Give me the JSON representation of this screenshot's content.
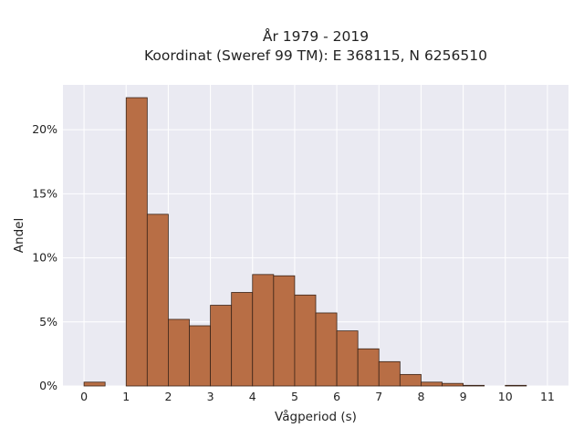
{
  "chart_data": {
    "type": "bar",
    "title": [
      "År 1979 - 2019",
      "Koordinat (Sweref 99 TM): E 368115, N 6256510"
    ],
    "xlabel": "Vågperiod (s)",
    "ylabel": "Andel",
    "bin_width": 0.5,
    "bins": [
      {
        "x": 0.0,
        "value": 0.3
      },
      {
        "x": 0.5,
        "value": 0
      },
      {
        "x": 1.0,
        "value": 22.5
      },
      {
        "x": 1.5,
        "value": 13.4
      },
      {
        "x": 2.0,
        "value": 5.2
      },
      {
        "x": 2.5,
        "value": 4.7
      },
      {
        "x": 3.0,
        "value": 6.3
      },
      {
        "x": 3.5,
        "value": 7.3
      },
      {
        "x": 4.0,
        "value": 8.7
      },
      {
        "x": 4.5,
        "value": 8.6
      },
      {
        "x": 5.0,
        "value": 7.1
      },
      {
        "x": 5.5,
        "value": 5.7
      },
      {
        "x": 6.0,
        "value": 4.3
      },
      {
        "x": 6.5,
        "value": 2.9
      },
      {
        "x": 7.0,
        "value": 1.9
      },
      {
        "x": 7.5,
        "value": 0.9
      },
      {
        "x": 8.0,
        "value": 0.3
      },
      {
        "x": 8.5,
        "value": 0.2
      },
      {
        "x": 9.0,
        "value": 0.05
      },
      {
        "x": 9.5,
        "value": 0
      },
      {
        "x": 10.0,
        "value": 0.05
      },
      {
        "x": 10.5,
        "value": 0
      }
    ],
    "xlim": [
      -0.5,
      11.5
    ],
    "ylim": [
      0,
      23.5
    ],
    "xticks": [
      0,
      1,
      2,
      3,
      4,
      5,
      6,
      7,
      8,
      9,
      10,
      11
    ],
    "yticks": [
      0,
      5,
      10,
      15,
      20
    ],
    "ytick_labels": [
      "0%",
      "5%",
      "10%",
      "15%",
      "20%"
    ],
    "grid": true,
    "colors": {
      "bar_fill": "#b86e45",
      "bar_stroke": "#3a2418",
      "plot_background": "#eaeaf2",
      "grid": "#ffffff"
    }
  }
}
